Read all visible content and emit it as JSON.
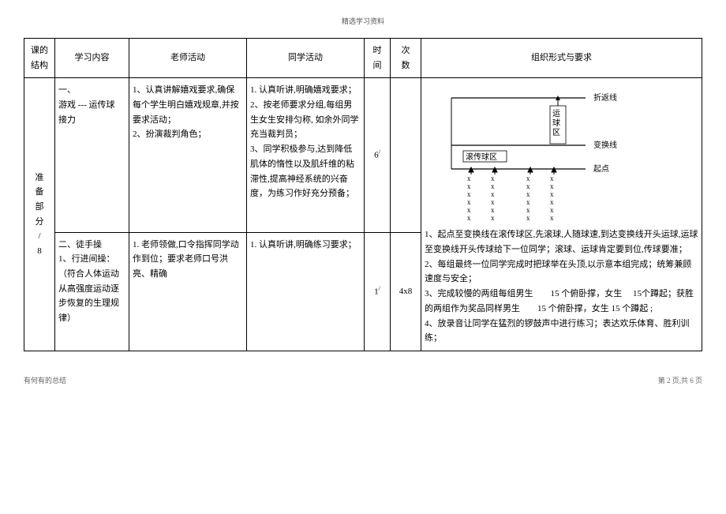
{
  "header": "精选学习资料",
  "columns": {
    "structure": "课的\n结构",
    "content": "学习内容",
    "teacher": "老师活动",
    "student": "同学活动",
    "time": "时\n间",
    "count": "次\n数",
    "org": "组织形式与要求"
  },
  "row_structure": "准\n备\n部\n分\n/\n8",
  "row1": {
    "content": "一、\n游戏 --- 运传球\n接力",
    "teacher": "1、认真讲解嬉戏要求,确保每个学生明白嬉戏规章,并按要求活动；\n2、扮演裁判角色；",
    "student": "1. 认真听讲,明确嬉戏要求；\n2、按老师要求分组,每组男生女生安排匀称, 如余外同学充当裁判员；\n 3、同学积极参与,达到降低肌体的惰性以及肌纤维的粘滞性,提高神经系统的兴奋度，为练习作好充分预备；",
    "time": "6",
    "time_sup": "/",
    "count": "",
    "org_lines": [
      "1、起点至变换线在滚传球区,先滚球,人随球速,到达变换线开头运球,运球至变换线开头传球给下一位同学；滚球、运球肯定要到位,传球要准；",
      "2、每组最终一位同学完成时把球举在头顶,以示意本组完成；统筹兼顾速度与安全；",
      "3、完成较慢的两组每组男生　　15 个俯卧撑，女生　 15个蹲起；获胜的两组作为奖品同样男生　　15 个俯卧撑，女生 15 个蹲起 ;",
      "4、放录音让同学在猛烈的锣鼓声中进行练习；表达欢乐体育、胜利训练；"
    ],
    "diagram_labels": {
      "top_line": "折返线",
      "mid_line": "变换线",
      "drip_zone": "滚传球区",
      "start_line": "起点",
      "side_label": "运球区",
      "marker": "x"
    }
  },
  "row2": {
    "content": "二、徒手操\n1、行进间操：（符合人体运动从高强度运动逐步恢复的生理规律）",
    "teacher": "1. 老师领做,口令指挥同学动作到位；要求老师口号洪亮、精确",
    "student": "1. 认真听讲,明确练习要求；",
    "time": "1",
    "time_sup": "/",
    "count": "4x8"
  },
  "footer": {
    "left": "有何有的总结",
    "right": "第 2 页,共 6 页"
  }
}
